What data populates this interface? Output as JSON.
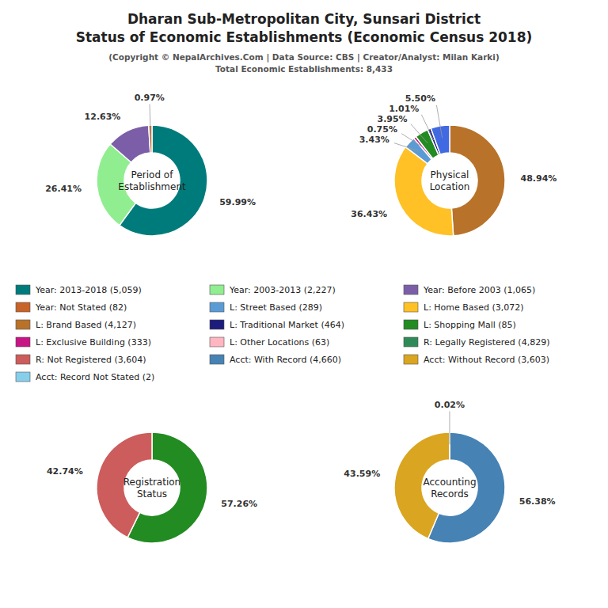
{
  "title": "Dharan Sub-Metropolitan City, Sunsari District\nStatus of Economic Establishments (Economic Census 2018)",
  "subtitle": "(Copyright © NepalArchives.Com | Data Source: CBS | Creator/Analyst: Milan Karki)\nTotal Economic Establishments: 8,433",
  "chart_data": [
    {
      "type": "pie",
      "title": "Period of\nEstablishment",
      "values": [
        59.99,
        26.41,
        12.63,
        0.97
      ],
      "value_labels": [
        "59.99%",
        "26.41%",
        "12.63%",
        "0.97%"
      ],
      "colors": [
        "#007B7B",
        "#90EE90",
        "#7B5EA7",
        "#C8632A"
      ],
      "data_labels": true
    },
    {
      "type": "pie",
      "title": "Physical\nLocation",
      "values": [
        48.94,
        36.43,
        3.43,
        0.75,
        3.95,
        1.01,
        5.5
      ],
      "value_labels": [
        "48.94%",
        "36.43%",
        "3.43%",
        "0.75%",
        "3.95%",
        "1.01%",
        "5.50%"
      ],
      "colors": [
        "#B8722A",
        "#FFC125",
        "#5B9BD5",
        "#C71585",
        "#228B22",
        "#1C1C7C",
        "#4169E1"
      ],
      "data_labels": true
    },
    {
      "type": "pie",
      "title": "Registration\nStatus",
      "values": [
        57.26,
        42.74
      ],
      "value_labels": [
        "57.26%",
        "42.74%"
      ],
      "colors": [
        "#228B22",
        "#CD5C5C"
      ],
      "data_labels": true
    },
    {
      "type": "pie",
      "title": "Accounting\nRecords",
      "values": [
        56.38,
        43.59,
        0.02
      ],
      "value_labels": [
        "56.38%",
        "43.59%",
        "0.02%"
      ],
      "colors": [
        "#4682B4",
        "#DAA520",
        "#8B4513"
      ],
      "data_labels": true
    }
  ],
  "legend_items": [
    {
      "name": "Year: 2013-2018 (5,059)",
      "color": "#007B7B"
    },
    {
      "name": "Year: 2003-2013 (2,227)",
      "color": "#90EE90"
    },
    {
      "name": "Year: Before 2003 (1,065)",
      "color": "#7B5EA7"
    },
    {
      "name": "Year: Not Stated (82)",
      "color": "#C8632A"
    },
    {
      "name": "L: Street Based (289)",
      "color": "#5B9BD5"
    },
    {
      "name": "L: Home Based (3,072)",
      "color": "#FFC125"
    },
    {
      "name": "L: Brand Based (4,127)",
      "color": "#B8722A"
    },
    {
      "name": "L: Traditional Market (464)",
      "color": "#1C1C7C"
    },
    {
      "name": "L: Shopping Mall (85)",
      "color": "#228B22"
    },
    {
      "name": "L: Exclusive Building (333)",
      "color": "#C71585"
    },
    {
      "name": "L: Other Locations (63)",
      "color": "#FFB6C1"
    },
    {
      "name": "R: Legally Registered (4,829)",
      "color": "#2E8B57"
    },
    {
      "name": "R: Not Registered (3,604)",
      "color": "#CD5C5C"
    },
    {
      "name": "Acct: With Record (4,660)",
      "color": "#4682B4"
    },
    {
      "name": "Acct: Without Record (3,603)",
      "color": "#DAA520"
    },
    {
      "name": "Acct: Record Not Stated (2)",
      "color": "#87CEEB"
    }
  ]
}
